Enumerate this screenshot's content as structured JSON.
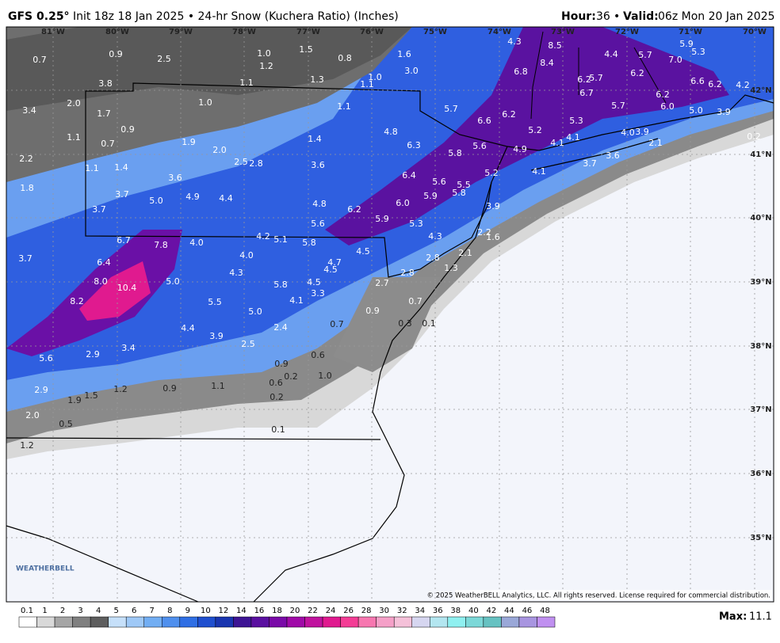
{
  "header": {
    "model": "GFS 0.25°",
    "description": "Init 18z 18 Jan 2025 • 24-hr Snow (Kuchera Ratio) (Inches)",
    "hour_label": "Hour:",
    "hour": "36",
    "separator": "•",
    "valid_label": "Valid:",
    "valid": "06z Mon 20 Jan 2025"
  },
  "map": {
    "longitude_labels": [
      "81°W",
      "80°W",
      "79°W",
      "78°W",
      "77°W",
      "76°W",
      "75°W",
      "74°W",
      "73°W",
      "72°W",
      "71°W",
      "70°W"
    ],
    "latitude_labels": [
      "42°N",
      "41°N",
      "40°N",
      "39°N",
      "38°N",
      "37°N",
      "36°N",
      "35°N"
    ],
    "snow_labels": [
      "0.7",
      "0.9",
      "2.5",
      "1.0",
      "1.5",
      "0.8",
      "1.6",
      "4.3",
      "8.5",
      "1.2",
      "3.0",
      "8.4",
      "4.4",
      "5.7",
      "7.0",
      "5.9",
      "5.3",
      "3.8",
      "1.1",
      "1.3",
      "1.0",
      "1.1",
      "6.8",
      "6.2",
      "5.7",
      "6.2",
      "6.6",
      "6.2",
      "4.2",
      "2.0",
      "1.0",
      "1.1",
      "5.7",
      "6.7",
      "6.2",
      "3.4",
      "1.7",
      "0.9",
      "6.6",
      "6.2",
      "5.7",
      "6.0",
      "5.0",
      "3.9",
      "1.1",
      "0.7",
      "1.9",
      "2.0",
      "1.4",
      "4.8",
      "5.2",
      "5.3",
      "4.9",
      "4.1",
      "4.1",
      "4.0",
      "3.9",
      "2.1",
      "6.3",
      "5.8",
      "5.6",
      "2.2",
      "1.1",
      "1.4",
      "2.5",
      "2.8",
      "3.6",
      "3.7",
      "3.6",
      "4.1",
      "5.2",
      "0.2",
      "1.8",
      "3.6",
      "6.4",
      "5.6",
      "5.5",
      "5.8",
      "5.9",
      "6.0",
      "3.7",
      "5.0",
      "4.9",
      "4.4",
      "4.8",
      "6.2",
      "3.9",
      "3.7",
      "5.6",
      "5.9",
      "5.3",
      "4.3",
      "2.2",
      "1.6",
      "6.7",
      "7.8",
      "4.0",
      "4.2",
      "5.1",
      "5.8",
      "4.5",
      "3.7",
      "6.4",
      "4.0",
      "4.7",
      "4.5",
      "2.8",
      "2.1",
      "4.3",
      "1.3",
      "2.8",
      "8.0",
      "10.4",
      "5.0",
      "5.8",
      "4.5",
      "2.7",
      "3.3",
      "4.1",
      "8.2",
      "5.5",
      "5.0",
      "0.7",
      "0.9",
      "2.4",
      "0.7",
      "0.3",
      "0.1",
      "4.4",
      "3.9",
      "2.5",
      "3.4",
      "0.6",
      "2.9",
      "5.6",
      "0.9",
      "0.2",
      "1.0",
      "0.6",
      "2.9",
      "1.5",
      "1.2",
      "0.9",
      "1.1",
      "1.9",
      "0.2",
      "2.0",
      "0.5",
      "0.1",
      "1.2"
    ],
    "logo": "WEATHERBELL",
    "copyright": "© 2025 WeatherBELL Analytics, LLC. All rights reserved. License required for commercial distribution."
  },
  "legend": {
    "levels": [
      "0.1",
      "1",
      "2",
      "3",
      "4",
      "5",
      "6",
      "7",
      "8",
      "9",
      "10",
      "12",
      "14",
      "16",
      "18",
      "20",
      "22",
      "24",
      "26",
      "28",
      "30",
      "32",
      "34",
      "36",
      "38",
      "40",
      "42",
      "44",
      "46",
      "48"
    ],
    "max_label": "Max:",
    "max": "11.1"
  }
}
